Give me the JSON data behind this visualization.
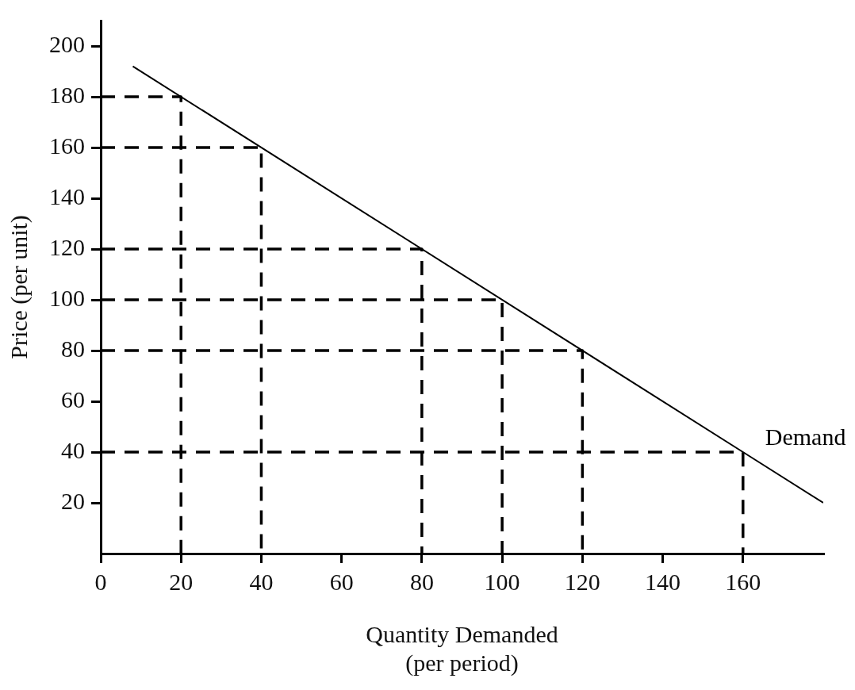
{
  "chart_data": {
    "type": "line",
    "xlabel": "Quantity Demanded\n(per period)",
    "ylabel": "Price (per unit)",
    "x": [
      8,
      160,
      180
    ],
    "series": [
      {
        "name": "Demand",
        "color": "#000000",
        "values": [
          192,
          40,
          20
        ],
        "line_style": "solid"
      },
      {
        "type": "line",
        "color": "#000000",
        "x": [
          0,
          20,
          20
        ],
        "values": [
          180,
          180,
          0
        ],
        "line_style": "dashed"
      },
      {
        "type": "line",
        "color": "#000000",
        "x": [
          0,
          40,
          40
        ],
        "values": [
          160,
          160,
          0
        ],
        "line_style": "dashed"
      },
      {
        "type": "line",
        "color": "#000000",
        "x": [
          0,
          80,
          80
        ],
        "values": [
          120,
          120,
          0
        ],
        "line_style": "dashed"
      },
      {
        "type": "line",
        "color": "#000000",
        "x": [
          0,
          100,
          100
        ],
        "values": [
          100,
          100,
          0
        ],
        "line_style": "dashed"
      },
      {
        "type": "line",
        "color": "#000000",
        "x": [
          0,
          120,
          120
        ],
        "values": [
          80,
          80,
          0
        ],
        "line_style": "dashed"
      },
      {
        "type": "line",
        "color": "#000000",
        "x": [
          0,
          160,
          160
        ],
        "values": [
          40,
          40,
          0
        ],
        "line_style": "dashed"
      }
    ],
    "xlim": [
      0,
      180
    ],
    "ylim": [
      0,
      210
    ],
    "xticks": [
      0,
      20,
      40,
      60,
      80,
      100,
      120,
      140,
      160
    ],
    "yticks": [
      20,
      40,
      60,
      80,
      100,
      120,
      140,
      160,
      180,
      200
    ],
    "grid": false,
    "legend": false,
    "marker": "none"
  }
}
